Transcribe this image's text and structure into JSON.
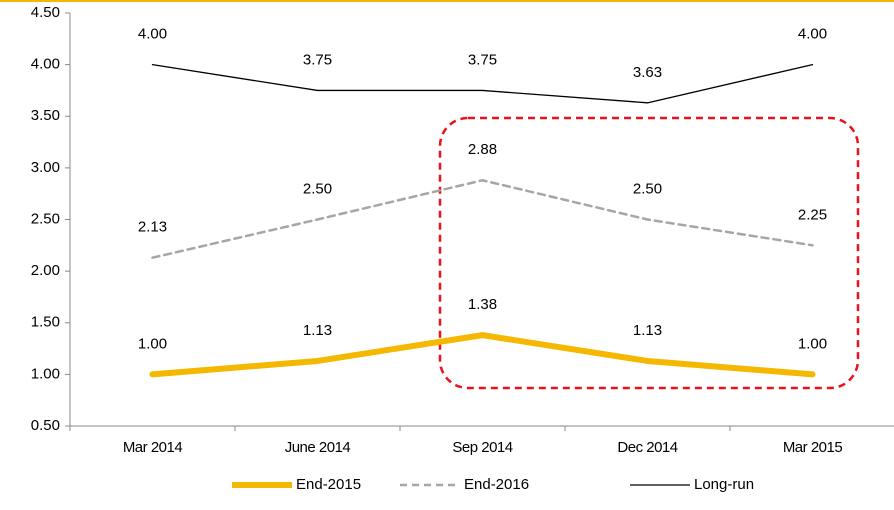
{
  "chart_data": {
    "type": "line",
    "categories": [
      "Mar 2014",
      "June 2014",
      "Sep 2014",
      "Dec 2014",
      "Mar 2015"
    ],
    "series": [
      {
        "name": "End-2015",
        "color": "#f5b800",
        "values": [
          1.0,
          1.13,
          1.38,
          1.13,
          1.0
        ],
        "value_labels": [
          "1.00",
          "1.13",
          "1.38",
          "1.13",
          "1.00"
        ]
      },
      {
        "name": "End-2016",
        "color": "#a6a6a6",
        "values": [
          2.13,
          2.5,
          2.88,
          2.5,
          2.25
        ],
        "value_labels": [
          "2.13",
          "2.50",
          "2.88",
          "2.50",
          "2.25"
        ]
      },
      {
        "name": "Long-run",
        "color": "#000000",
        "values": [
          4.0,
          3.75,
          3.75,
          3.63,
          4.0
        ],
        "value_labels": [
          "4.00",
          "3.75",
          "3.75",
          "3.63",
          "4.00"
        ]
      }
    ],
    "ylim": [
      0.5,
      4.5
    ],
    "yticks": [
      {
        "value": 0.5,
        "label": "0.50"
      },
      {
        "value": 1,
        "label": "1.00"
      },
      {
        "value": 1.5,
        "label": "1.50"
      },
      {
        "value": 2,
        "label": "2.00"
      },
      {
        "value": 2.5,
        "label": "2.50"
      },
      {
        "value": 3,
        "label": "3.00"
      },
      {
        "value": 3.5,
        "label": "3.50"
      },
      {
        "value": 4,
        "label": "4.00"
      },
      {
        "value": 4.5,
        "label": "4.50"
      }
    ],
    "grid": false
  }
}
